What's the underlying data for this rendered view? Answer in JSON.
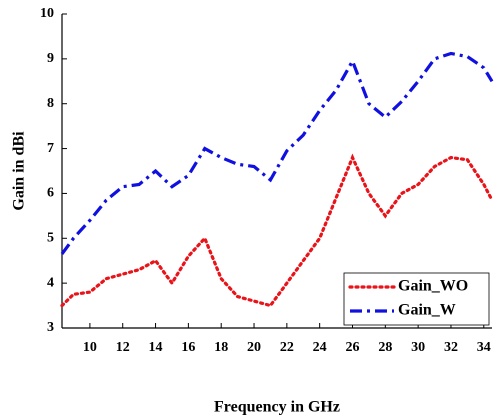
{
  "chart_data": {
    "type": "line",
    "x_label": "Frequency in GHz",
    "y_label": "Gain in dBi",
    "x": [
      8.3,
      9,
      10,
      11,
      12,
      13,
      14,
      15,
      16,
      17,
      18,
      19,
      20,
      21,
      22,
      23,
      24,
      25,
      26,
      27,
      28,
      29,
      30,
      31,
      32,
      33,
      34,
      34.5
    ],
    "series": [
      {
        "name": "Gain_WO",
        "color": "#e8141a",
        "dash": "dotted",
        "values": [
          3.5,
          3.75,
          3.8,
          4.1,
          4.2,
          4.3,
          4.5,
          4.0,
          4.6,
          5.0,
          4.1,
          3.7,
          3.6,
          3.5,
          4.0,
          4.5,
          5.0,
          5.9,
          6.8,
          6.0,
          5.5,
          6.0,
          6.2,
          6.6,
          6.8,
          6.75,
          6.2,
          5.85
        ]
      },
      {
        "name": "Gain_W",
        "color": "#1010e0",
        "dash": "dashdot",
        "values": [
          4.65,
          5.0,
          5.4,
          5.85,
          6.15,
          6.2,
          6.5,
          6.15,
          6.4,
          7.0,
          6.8,
          6.65,
          6.6,
          6.3,
          6.95,
          7.3,
          7.85,
          8.3,
          8.95,
          8.0,
          7.7,
          8.05,
          8.5,
          9.0,
          9.12,
          9.05,
          8.8,
          8.5
        ]
      }
    ],
    "xlim": [
      8.3,
      34.5
    ],
    "xticks": [
      10,
      12,
      14,
      16,
      18,
      20,
      22,
      24,
      26,
      28,
      30,
      32,
      34
    ],
    "ylim": [
      3,
      10
    ],
    "yticks": [
      3,
      4,
      5,
      6,
      7,
      8,
      9,
      10
    ],
    "legend": "lower right",
    "grid": false
  }
}
